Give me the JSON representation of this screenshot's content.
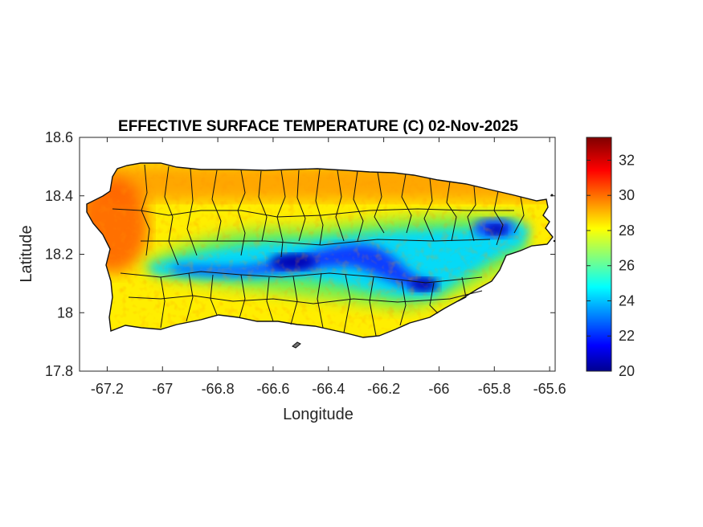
{
  "figure": {
    "title": "EFFECTIVE SURFACE TEMPERATURE (C) 02-Nov-2025",
    "xlabel": "Longitude",
    "ylabel": "Latitude"
  },
  "map": {
    "region": "Puerto Rico",
    "xlim": [
      -67.3,
      -65.58
    ],
    "ylim": [
      17.8,
      18.6
    ],
    "x_ticks": [
      -67.2,
      -67,
      -66.8,
      -66.6,
      -66.4,
      -66.2,
      -66,
      -65.8,
      -65.6
    ],
    "x_tick_labels": [
      "-67.2",
      "-67",
      "-66.8",
      "-66.6",
      "-66.4",
      "-66.2",
      "-66",
      "-65.8",
      "-65.6"
    ],
    "y_ticks": [
      17.8,
      18,
      18.2,
      18.4,
      18.6
    ],
    "y_tick_labels": [
      "17.8",
      "18",
      "18.2",
      "18.4",
      "18.6"
    ],
    "municipal_boundaries": true,
    "colormap": "jet"
  },
  "colorbar": {
    "min": 20,
    "max": 33.3,
    "ticks": [
      20,
      22,
      24,
      26,
      28,
      30,
      32
    ],
    "tick_labels": [
      "20",
      "22",
      "24",
      "26",
      "28",
      "30",
      "32"
    ],
    "colors": [
      "#00008f",
      "#0000ff",
      "#00ffff",
      "#ffff00",
      "#ff0000",
      "#800000"
    ]
  },
  "chart_data": {
    "type": "heatmap",
    "title": "EFFECTIVE SURFACE TEMPERATURE (C) 02-Nov-2025",
    "xlabel": "Longitude",
    "ylabel": "Latitude",
    "xlim": [
      -67.3,
      -65.58
    ],
    "ylim": [
      17.8,
      18.6
    ],
    "value_range": [
      20,
      33.3
    ],
    "samples": [
      {
        "lon": -67.2,
        "lat": 18.38,
        "temp": 30.5
      },
      {
        "lon": -67.17,
        "lat": 18.24,
        "temp": 31.0
      },
      {
        "lon": -66.7,
        "lat": 18.43,
        "temp": 30.0
      },
      {
        "lon": -66.0,
        "lat": 18.42,
        "temp": 30.0
      },
      {
        "lon": -66.75,
        "lat": 18.15,
        "temp": 22.5
      },
      {
        "lon": -66.55,
        "lat": 18.17,
        "temp": 21.0
      },
      {
        "lon": -66.4,
        "lat": 18.2,
        "temp": 22.5
      },
      {
        "lon": -66.06,
        "lat": 18.1,
        "temp": 21.5
      },
      {
        "lon": -65.8,
        "lat": 18.29,
        "temp": 22.0
      },
      {
        "lon": -66.5,
        "lat": 18.0,
        "temp": 28.0
      },
      {
        "lon": -65.65,
        "lat": 18.23,
        "temp": 27.0
      }
    ]
  }
}
